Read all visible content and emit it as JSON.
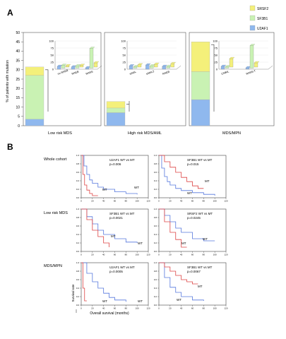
{
  "panel_a": {
    "label": "A",
    "ylabel": "% of patients with mutation",
    "yticks": [
      "0",
      "5",
      "10",
      "15",
      "20",
      "25",
      "30",
      "35",
      "40",
      "45",
      "50"
    ],
    "legend": [
      {
        "name": "SRSF2",
        "color": "#f4f07a"
      },
      {
        "name": "SF3B1",
        "color": "#c9f2b3"
      },
      {
        "name": "U2AF1",
        "color": "#8fb8ee"
      }
    ],
    "groups": [
      {
        "name": "Low risk MDS"
      },
      {
        "name": "High risk MDS/AML"
      },
      {
        "name": "MDS/MPN"
      }
    ]
  },
  "panel_b": {
    "label": "B",
    "row_labels": [
      "Whole cohort",
      "Low risk MDS",
      "MDS/MPN"
    ],
    "ylabel_surv": "Survival rate",
    "xlabel_surv": "Overall survival (months)"
  },
  "chart_data": [
    {
      "type": "bar",
      "title": "",
      "ylabel": "% of patients with mutation",
      "ylim": [
        0,
        50
      ],
      "categories": [
        "Low risk MDS",
        "High risk MDS/AML",
        "MDS/MPN"
      ],
      "series": [
        {
          "name": "U2AF1",
          "values": [
            3.5,
            7,
            14
          ]
        },
        {
          "name": "SF3B1",
          "values": [
            23.5,
            2.5,
            15
          ]
        },
        {
          "name": "SRSF2",
          "values": [
            4.5,
            3.5,
            16
          ]
        }
      ],
      "legend": "top-right"
    },
    {
      "type": "bar",
      "title": "",
      "ylim": [
        0,
        100
      ],
      "yticks": [
        "0",
        "25",
        "50",
        "75",
        "100"
      ],
      "categories": [
        "no RAEB",
        "RAEB",
        "RARS"
      ],
      "series": [
        {
          "name": "U2AF1",
          "values": [
            10,
            8,
            5
          ]
        },
        {
          "name": "SF3B1",
          "values": [
            10,
            8,
            70
          ]
        },
        {
          "name": "SRSF2",
          "values": [
            5,
            6,
            15
          ]
        }
      ]
    },
    {
      "type": "bar",
      "title": "",
      "ylim": [
        0,
        100
      ],
      "yticks": [
        "0",
        "25",
        "50",
        "75",
        "100"
      ],
      "categories": [
        "sAML",
        "sAML2",
        "RAEB"
      ],
      "series": [
        {
          "name": "U2AF1",
          "values": [
            12,
            15,
            10
          ]
        },
        {
          "name": "SF3B1",
          "values": [
            5,
            8,
            6
          ]
        },
        {
          "name": "SRSF2",
          "values": [
            8,
            10,
            12
          ]
        }
      ]
    },
    {
      "type": "bar",
      "title": "",
      "ylim": [
        0,
        100
      ],
      "yticks": [
        "0",
        "25",
        "50",
        "75",
        "100"
      ],
      "categories": [
        "CMML",
        "RARS-T"
      ],
      "series": [
        {
          "name": "U2AF1",
          "values": [
            10,
            5
          ]
        },
        {
          "name": "SF3B1",
          "values": [
            5,
            80
          ]
        },
        {
          "name": "SRSF2",
          "values": [
            30,
            15
          ]
        }
      ]
    },
    {
      "type": "line",
      "annotation": "U2AF1  WT vs MT",
      "pvalue": "p=0.006",
      "series": [
        {
          "name": "WT",
          "color": "#5577dd",
          "x": [
            0,
            5,
            10,
            15,
            20,
            30,
            40,
            60,
            80,
            100
          ],
          "y": [
            1.0,
            0.75,
            0.55,
            0.42,
            0.34,
            0.25,
            0.2,
            0.14,
            0.1,
            0.08
          ]
        },
        {
          "name": "MT",
          "color": "#dd4444",
          "x": [
            0,
            3,
            6,
            10,
            15,
            20,
            30
          ],
          "y": [
            1.0,
            0.55,
            0.3,
            0.18,
            0.1,
            0.05,
            0.05
          ]
        }
      ]
    },
    {
      "type": "line",
      "annotation": "SF3B1  WT vs MT",
      "pvalue": "p=0.015",
      "series": [
        {
          "name": "WT",
          "color": "#5577dd",
          "x": [
            0,
            5,
            10,
            15,
            20,
            30,
            40,
            60,
            80,
            100
          ],
          "y": [
            1.0,
            0.7,
            0.5,
            0.38,
            0.3,
            0.22,
            0.17,
            0.12,
            0.08,
            0.05
          ]
        },
        {
          "name": "MT",
          "color": "#dd4444",
          "x": [
            0,
            10,
            20,
            30,
            40,
            50,
            60,
            70,
            80
          ],
          "y": [
            1.0,
            0.85,
            0.72,
            0.6,
            0.48,
            0.38,
            0.28,
            0.22,
            0.22
          ]
        }
      ]
    },
    {
      "type": "line",
      "annotation": "SF3B1  WT vs MT",
      "pvalue": "p=0.0021",
      "series": [
        {
          "name": "WT",
          "color": "#5577dd",
          "x": [
            0,
            10,
            20,
            30,
            40,
            60,
            80,
            100
          ],
          "y": [
            1.0,
            0.82,
            0.65,
            0.5,
            0.4,
            0.3,
            0.22,
            0.2
          ]
        },
        {
          "name": "MT",
          "color": "#dd4444",
          "x": [
            0,
            10,
            20,
            30,
            40,
            50
          ],
          "y": [
            1.0,
            0.75,
            0.5,
            0.35,
            0.2,
            0.1
          ]
        }
      ]
    },
    {
      "type": "line",
      "annotation": "SRSF2  WT vs MT",
      "pvalue": "p=0.0245",
      "series": [
        {
          "name": "WT",
          "color": "#5577dd",
          "x": [
            0,
            10,
            20,
            30,
            40,
            60,
            80,
            100
          ],
          "y": [
            1.0,
            0.85,
            0.7,
            0.55,
            0.45,
            0.3,
            0.25,
            0.25
          ]
        },
        {
          "name": "MT",
          "color": "#dd4444",
          "x": [
            0,
            10,
            20,
            30,
            40,
            50
          ],
          "y": [
            1.0,
            0.7,
            0.45,
            0.28,
            0.1,
            0.1
          ]
        }
      ]
    },
    {
      "type": "line",
      "annotation": "U2AF1  WT vs MT",
      "pvalue": "p=0.0005",
      "series": [
        {
          "name": "WT",
          "color": "#5577dd",
          "x": [
            0,
            10,
            20,
            30,
            40,
            50,
            60,
            80
          ],
          "y": [
            1.0,
            0.75,
            0.55,
            0.4,
            0.28,
            0.18,
            0.12,
            0.08
          ]
        },
        {
          "name": "MT",
          "color": "#dd4444",
          "x": [
            0,
            3,
            6,
            10
          ],
          "y": [
            1.0,
            0.4,
            0.1,
            0.1
          ]
        }
      ]
    },
    {
      "type": "line",
      "annotation": "SF3B1  WT vs MT",
      "pvalue": "p=0.0067",
      "series": [
        {
          "name": "WT",
          "color": "#5577dd",
          "x": [
            0,
            10,
            20,
            30,
            40,
            60,
            80
          ],
          "y": [
            1.0,
            0.65,
            0.42,
            0.3,
            0.2,
            0.12,
            0.1
          ]
        },
        {
          "name": "MT",
          "color": "#dd4444",
          "x": [
            0,
            10,
            20,
            30,
            40,
            50,
            60,
            70
          ],
          "y": [
            1.0,
            0.9,
            0.8,
            0.7,
            0.6,
            0.55,
            0.5,
            0.5
          ]
        }
      ]
    }
  ]
}
